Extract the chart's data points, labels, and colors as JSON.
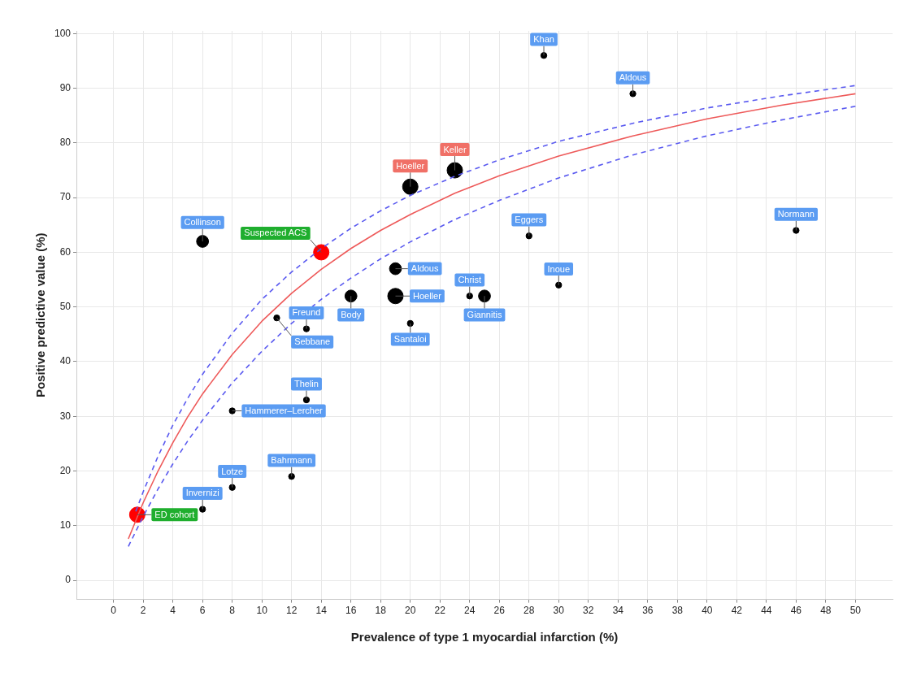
{
  "chart_data": {
    "type": "bubble",
    "xlabel": "Prevalence of type 1 myocardial infarction (%)",
    "ylabel": "Positive predictive value (%)",
    "xlim": [
      -2.5,
      52.5
    ],
    "xticks": [
      0,
      2,
      4,
      6,
      8,
      10,
      12,
      14,
      16,
      18,
      20,
      22,
      24,
      26,
      28,
      30,
      32,
      34,
      36,
      38,
      40,
      42,
      44,
      46,
      48,
      50
    ],
    "ylim": [
      -3.5,
      100.5
    ],
    "yticks": [
      0,
      10,
      20,
      30,
      40,
      50,
      60,
      70,
      80,
      90,
      100
    ],
    "grid": true,
    "legend": false,
    "marker": "circle",
    "series": [
      {
        "type": "line",
        "marker": "none",
        "color": "#ee5a5a",
        "line_style": "solid",
        "x": [
          1,
          2,
          3,
          4,
          5,
          6,
          8,
          10,
          12,
          14,
          16,
          18,
          20,
          23,
          26,
          30,
          35,
          40,
          45,
          50
        ],
        "values": [
          7.6,
          14.2,
          20.0,
          25.2,
          29.9,
          34.1,
          41.3,
          47.4,
          52.5,
          56.9,
          60.7,
          64.0,
          66.9,
          70.8,
          74.0,
          77.6,
          81.3,
          84.4,
          86.9,
          89.0
        ]
      },
      {
        "type": "line",
        "marker": "none",
        "color": "#5a5af0",
        "line_style": "dashed",
        "x": [
          1.5,
          2,
          3,
          4,
          5,
          6,
          8,
          10,
          12,
          14,
          16,
          18,
          20,
          23,
          26,
          30,
          35,
          40,
          45,
          50
        ],
        "values": [
          12.6,
          16.2,
          22.7,
          28.4,
          33.3,
          37.7,
          45.2,
          51.4,
          56.4,
          60.7,
          64.4,
          67.6,
          70.4,
          73.9,
          76.9,
          80.3,
          83.6,
          86.4,
          88.6,
          90.5
        ]
      },
      {
        "type": "line",
        "marker": "none",
        "color": "#5a5af0",
        "line_style": "dashed",
        "x": [
          1,
          2,
          3,
          4,
          5,
          6,
          8,
          10,
          12,
          14,
          16,
          18,
          20,
          23,
          26,
          30,
          35,
          40,
          45,
          50
        ],
        "values": [
          6.2,
          11.7,
          16.7,
          21.3,
          25.5,
          29.3,
          36.1,
          41.9,
          47.0,
          51.4,
          55.3,
          58.8,
          61.9,
          66.0,
          69.5,
          73.6,
          77.8,
          81.3,
          84.2,
          86.7
        ]
      },
      {
        "type": "bubble",
        "color": "#000000",
        "x": [
          29,
          35,
          6,
          28,
          46,
          19,
          16,
          19,
          24,
          25,
          30,
          11,
          13,
          20,
          13,
          8,
          12,
          8,
          6
        ],
        "values": [
          96,
          89,
          62,
          63,
          64,
          57,
          52,
          52,
          52,
          52,
          54,
          48,
          46,
          47,
          33,
          31,
          19,
          17,
          13
        ],
        "sizes": [
          0.15,
          0.15,
          0.6,
          0.15,
          0.15,
          0.6,
          0.6,
          1,
          0.15,
          0.6,
          0.15,
          0.15,
          0.15,
          0.15,
          0.15,
          0.15,
          0.15,
          0.15,
          0.15
        ],
        "value_labels": [
          "Khan",
          "Aldous",
          "Collinson",
          "Eggers",
          "Normann",
          "Aldous",
          "Body",
          "Hoeller",
          "Christ",
          "Giannitis",
          "Inoue",
          "Sebbane",
          "Freund",
          "Santaloi",
          "Thelin",
          "Hammerer–Lercher",
          "Bahrmann",
          "Lotze",
          "Invernizi"
        ]
      },
      {
        "type": "bubble",
        "color": "#000000",
        "x": [
          20,
          23
        ],
        "values": [
          72,
          75
        ],
        "sizes": [
          1,
          1
        ],
        "value_labels": [
          "Hoeller",
          "Keller"
        ]
      },
      {
        "type": "bubble",
        "color": "#ff0000",
        "x": [
          14,
          1.6
        ],
        "values": [
          60,
          12
        ],
        "sizes": [
          1,
          1
        ],
        "value_labels": [
          "Suspected ACS",
          "ED cohort"
        ]
      }
    ]
  }
}
